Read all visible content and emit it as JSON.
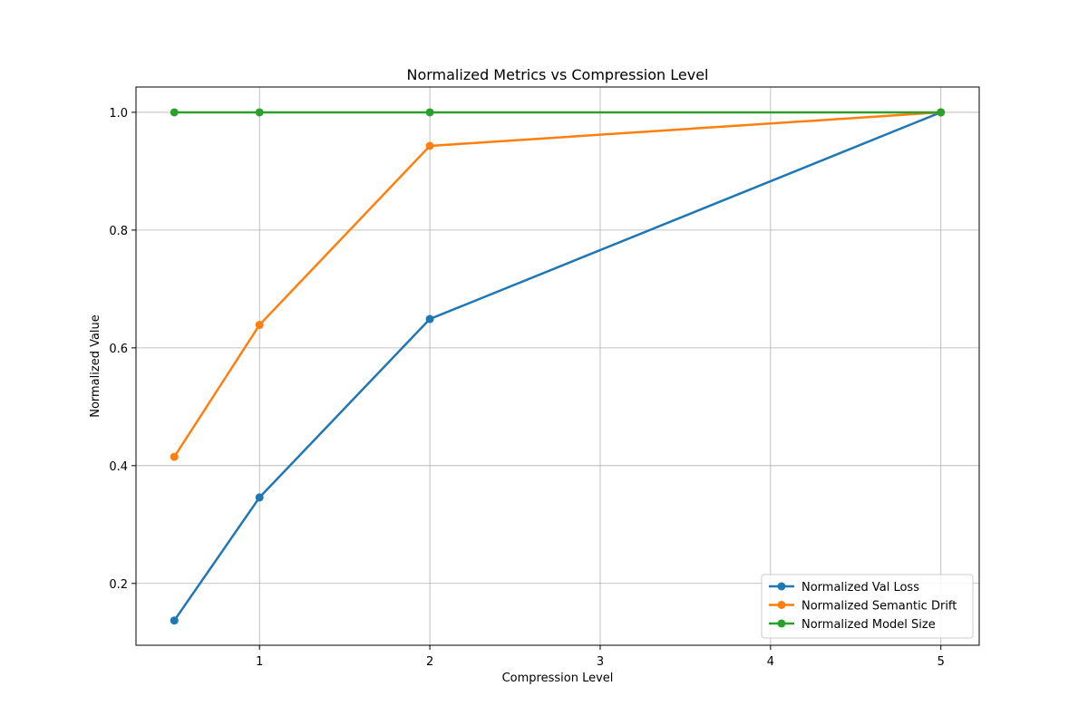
{
  "chart_data": {
    "type": "line",
    "title": "Normalized Metrics vs Compression Level",
    "xlabel": "Compression Level",
    "ylabel": "Normalized Value",
    "xlim": [
      0.275,
      5.225
    ],
    "ylim": [
      0.095,
      1.043
    ],
    "x_ticks": [
      1,
      2,
      3,
      4,
      5
    ],
    "y_ticks": [
      0.2,
      0.4,
      0.6,
      0.8,
      1.0
    ],
    "y_tick_labels": [
      "0.2",
      "0.4",
      "0.6",
      "0.8",
      "1.0"
    ],
    "x_tick_labels": [
      "1",
      "2",
      "3",
      "4",
      "5"
    ],
    "grid": true,
    "legend_position": "bottom-right",
    "x": [
      0.5,
      1,
      2,
      5
    ],
    "series": [
      {
        "name": "Normalized Val Loss",
        "color": "#1f77b4",
        "values": [
          0.137,
          0.346,
          0.649,
          1.0
        ]
      },
      {
        "name": "Normalized Semantic Drift",
        "color": "#ff7f0e",
        "values": [
          0.415,
          0.639,
          0.943,
          1.0
        ]
      },
      {
        "name": "Normalized Model Size",
        "color": "#2ca02c",
        "values": [
          1.0,
          1.0,
          1.0,
          1.0
        ]
      }
    ]
  }
}
